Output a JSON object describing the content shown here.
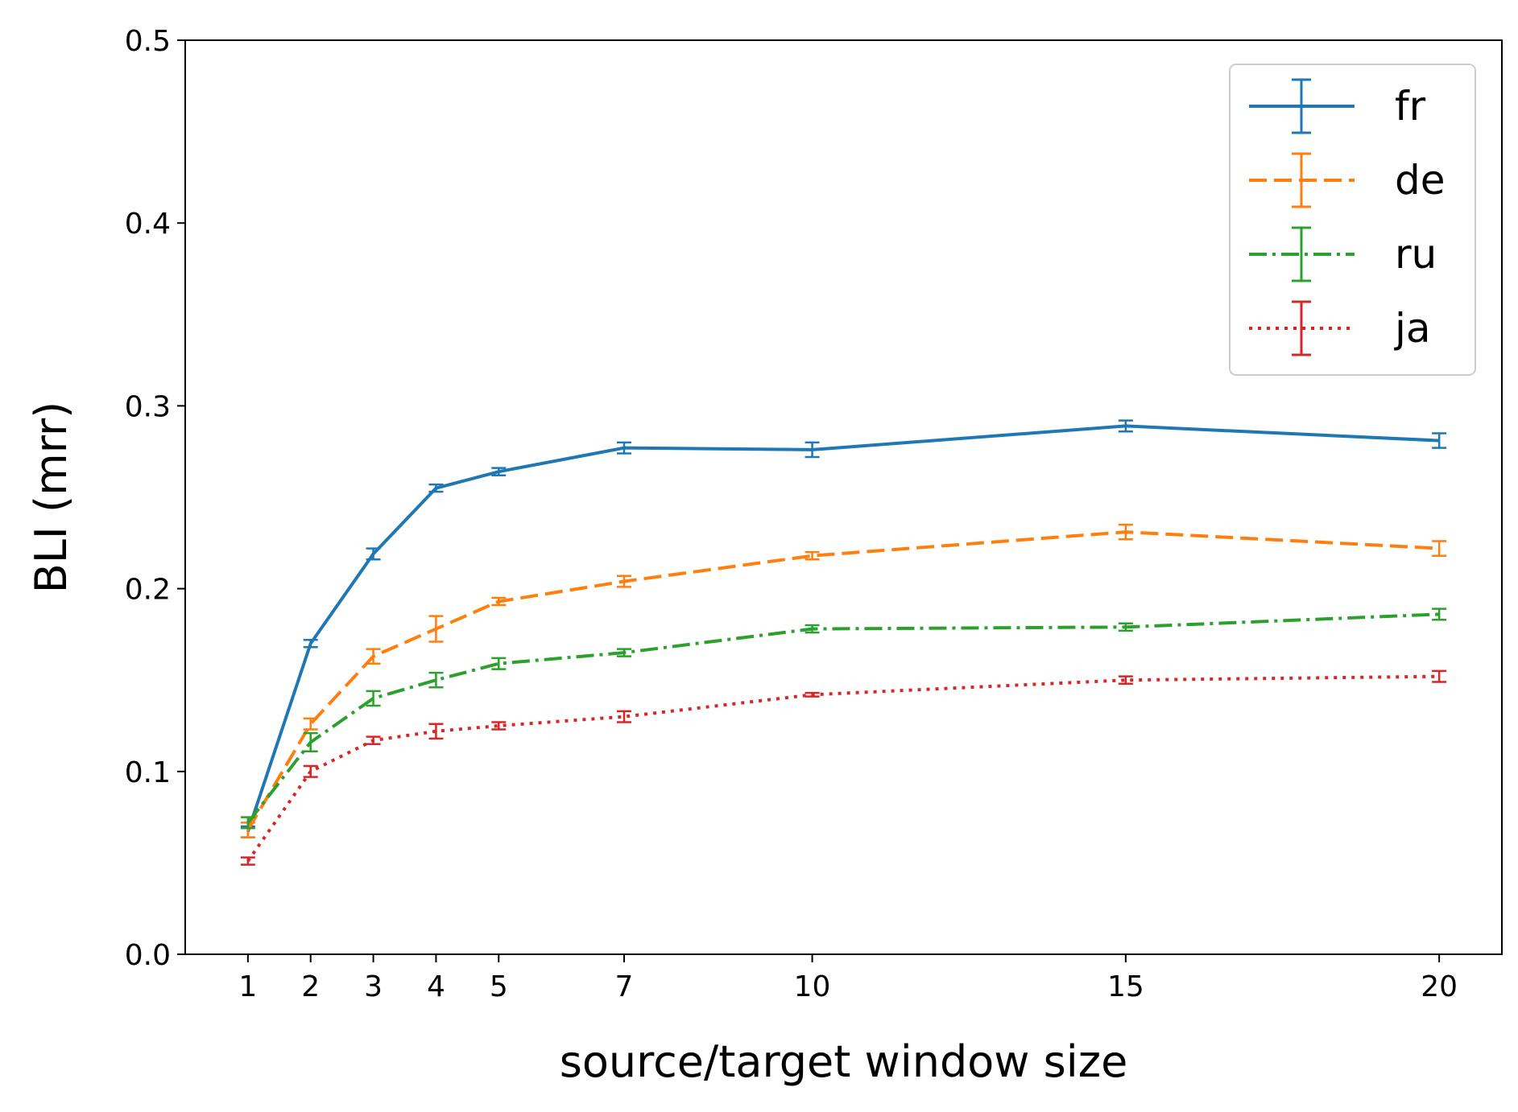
{
  "chart_data": {
    "type": "line",
    "title": "",
    "xlabel": "source/target window size",
    "ylabel": "BLI (mrr)",
    "x": [
      1,
      2,
      3,
      4,
      5,
      7,
      10,
      15,
      20
    ],
    "xticks": [
      "1",
      "2",
      "3",
      "4",
      "5",
      "7",
      "10",
      "15",
      "20"
    ],
    "xlim": [
      0,
      21
    ],
    "ylim": [
      0.0,
      0.5
    ],
    "yticks": [
      "0.0",
      "0.1",
      "0.2",
      "0.3",
      "0.4",
      "0.5"
    ],
    "grid": false,
    "legend_position": "top-right",
    "series": [
      {
        "name": "fr",
        "color": "#1f77b4",
        "linestyle": "solid",
        "values": [
          0.067,
          0.17,
          0.219,
          0.255,
          0.264,
          0.277,
          0.276,
          0.289,
          0.281
        ],
        "errors": [
          0.003,
          0.002,
          0.003,
          0.002,
          0.002,
          0.003,
          0.004,
          0.003,
          0.004
        ]
      },
      {
        "name": "de",
        "color": "#ff7f0e",
        "linestyle": "dashed",
        "values": [
          0.068,
          0.126,
          0.163,
          0.178,
          0.193,
          0.204,
          0.218,
          0.231,
          0.222
        ],
        "errors": [
          0.004,
          0.003,
          0.004,
          0.007,
          0.002,
          0.003,
          0.002,
          0.004,
          0.004
        ]
      },
      {
        "name": "ru",
        "color": "#2ca02c",
        "linestyle": "dashdot",
        "values": [
          0.072,
          0.116,
          0.14,
          0.15,
          0.159,
          0.165,
          0.178,
          0.179,
          0.186
        ],
        "errors": [
          0.003,
          0.005,
          0.004,
          0.004,
          0.003,
          0.002,
          0.002,
          0.002,
          0.003
        ]
      },
      {
        "name": "ja",
        "color": "#d62728",
        "linestyle": "dotted",
        "values": [
          0.051,
          0.1,
          0.117,
          0.122,
          0.125,
          0.13,
          0.142,
          0.15,
          0.152
        ],
        "errors": [
          0.002,
          0.003,
          0.002,
          0.004,
          0.002,
          0.003,
          0.001,
          0.002,
          0.003
        ]
      }
    ]
  }
}
